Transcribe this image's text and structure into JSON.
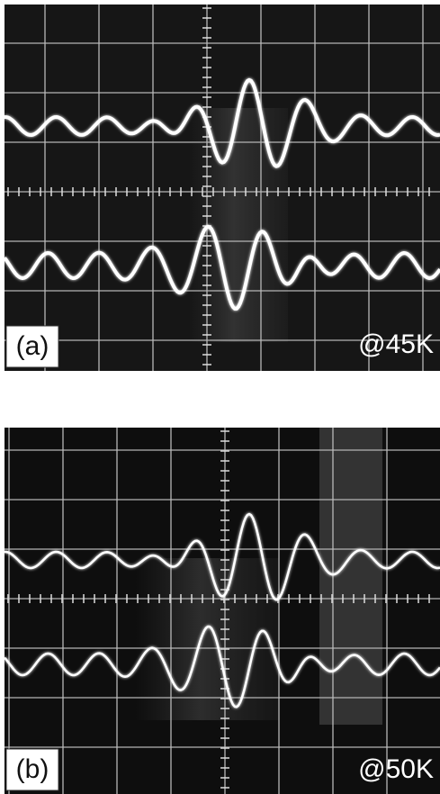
{
  "panels": [
    {
      "label": "(a)",
      "caption": "@45K"
    },
    {
      "label": "(b)",
      "caption": "@50K"
    }
  ]
}
